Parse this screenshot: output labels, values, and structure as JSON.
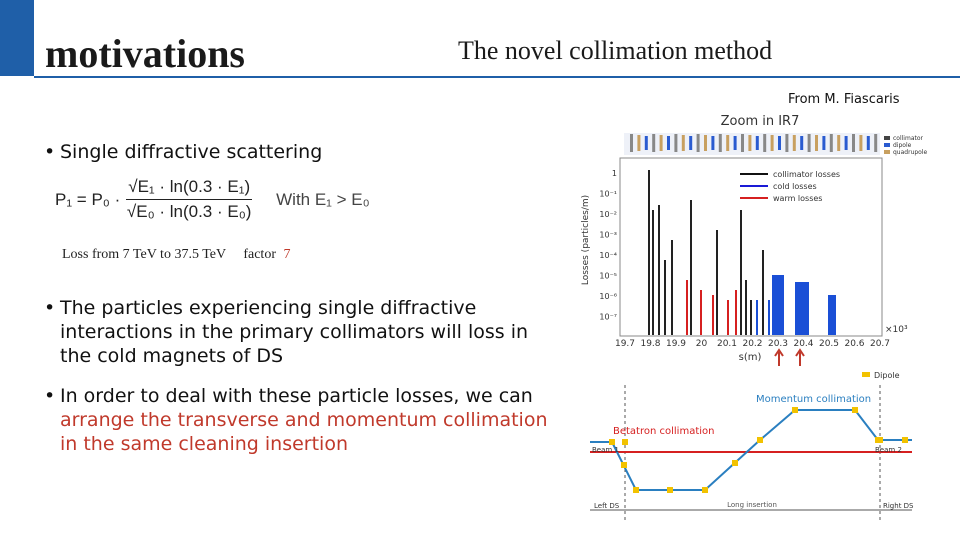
{
  "header": {
    "title": "motivations",
    "subtitle": "The novel collimation method"
  },
  "credit": "From M. Fiascaris",
  "bullets": [
    {
      "text": "Single diffractive scattering"
    },
    {
      "text": "The particles experiencing single diffractive interactions in the primary collimators will loss in the cold magnets of DS"
    },
    {
      "text": "In order to deal with these particle losses, we can",
      "highlight": "arrange the transverse and momentum collimation in the same cleaning insertion"
    }
  ],
  "formula": {
    "lhs": "P₁ = P₀ ·",
    "numerator": "√E₁ · ln(0.3 · E₁)",
    "denominator": "√E₀ · ln(0.3 · E₀)",
    "condition": "With E₁ > E₀"
  },
  "loss_note": {
    "text": "Loss from 7 TeV to 37.5 TeV",
    "factor_label": "factor",
    "factor": "7"
  },
  "figure": {
    "title": "Zoom in IR7",
    "element_legend": [
      "collimator",
      "dipole",
      "quadrupole"
    ],
    "loss_legend": [
      "collimator losses",
      "cold losses",
      "warm losses"
    ],
    "y_label": "Losses (particles/m)",
    "y_ticks": [
      "1",
      "10⁻¹",
      "10⁻²",
      "10⁻³",
      "10⁻⁴",
      "10⁻⁵",
      "10⁻⁶",
      "10⁻⁷"
    ],
    "x_ticks": [
      "19.7",
      "19.8",
      "19.9",
      "20",
      "20.1",
      "20.2",
      "20.3",
      "20.4",
      "20.5",
      "20.6",
      "20.7"
    ],
    "x_label": "s(m)",
    "x_multiplier": "×10³",
    "dipole_label": "Dipole",
    "momentum_label": "Momentum collimation",
    "betatron_label": "Betatron collimation",
    "beam1": "Beam 1",
    "beam2": "Beam 2",
    "left_ds": "Left DS",
    "insertion": "Long insertion",
    "right_ds": "Right DS"
  }
}
